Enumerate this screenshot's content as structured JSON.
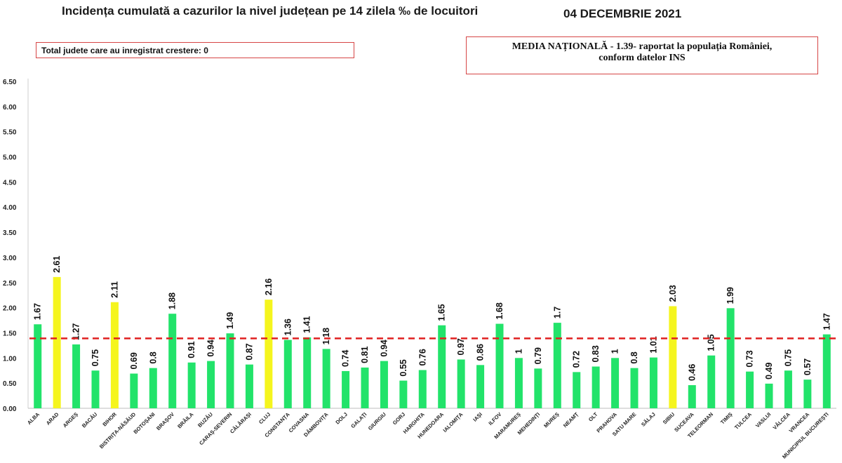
{
  "header": {
    "title": "Incidența cumulată a cazurilor la nivel județean pe 14 zilela ‰ de locuitori",
    "date": "04 DECEMBRIE 2021"
  },
  "info": {
    "growth_note": "Total judete care au inregistrat crestere: 0",
    "national_line1": "MEDIA NAȚIONALĂ  - 1.39-  raportat la populația României,",
    "national_line2": "conform datelor INS"
  },
  "colors": {
    "normal": "#22e36a",
    "highlight": "#f5f51e",
    "average_line": "#e02020",
    "box_border": "#d64545"
  },
  "chart_data": {
    "type": "bar",
    "title": "Incidența cumulată a cazurilor la nivel județean pe 14 zilela ‰ de locuitori",
    "xlabel": "",
    "ylabel": "",
    "ylim": [
      0,
      6.5
    ],
    "yticks": [
      "0.00",
      "0.50",
      "1.00",
      "1.50",
      "2.00",
      "2.50",
      "3.00",
      "3.50",
      "4.00",
      "4.50",
      "5.00",
      "5.50",
      "6.00",
      "6.50"
    ],
    "average": 1.39,
    "grid": false,
    "categories": [
      "ALBA",
      "ARAD",
      "ARGEȘ",
      "BACĂU",
      "BIHOR",
      "BISTRIȚA-NĂSĂUD",
      "BOTOȘANI",
      "BRAȘOV",
      "BRĂILA",
      "BUZĂU",
      "CARAȘ-SEVERIN",
      "CĂLĂRAȘI",
      "CLUJ",
      "CONSTANȚA",
      "COVASNA",
      "DÂMBOVIȚA",
      "DOLJ",
      "GALAȚI",
      "GIURGIU",
      "GORJ",
      "HARGHITA",
      "HUNEDOARA",
      "IALOMIȚA",
      "IAȘI",
      "ILFOV",
      "MARAMUREȘ",
      "MEHEDINȚI",
      "MUREȘ",
      "NEAMȚ",
      "OLT",
      "PRAHOVA",
      "SATU MARE",
      "SĂLAJ",
      "SIBIU",
      "SUCEAVA",
      "TELEORMAN",
      "TIMIȘ",
      "TULCEA",
      "VASLUI",
      "VÂLCEA",
      "VRANCEA",
      "MUNICIPIUL BUCUREȘTI"
    ],
    "values": [
      1.67,
      2.61,
      1.27,
      0.75,
      2.11,
      0.69,
      0.8,
      1.88,
      0.91,
      0.94,
      1.49,
      0.87,
      2.16,
      1.36,
      1.41,
      1.18,
      0.74,
      0.81,
      0.94,
      0.55,
      0.76,
      1.65,
      0.97,
      0.86,
      1.68,
      1,
      0.79,
      1.7,
      0.72,
      0.83,
      1,
      0.8,
      1.01,
      2.03,
      0.46,
      1.05,
      1.99,
      0.73,
      0.49,
      0.75,
      0.57,
      1.47
    ],
    "value_labels": [
      "1.67",
      "2.61",
      "1.27",
      "0.75",
      "2.11",
      "0.69",
      "0.8",
      "1.88",
      "0.91",
      "0.94",
      "1.49",
      "0.87",
      "2.16",
      "1.36",
      "1.41",
      "1.18",
      "0.74",
      "0.81",
      "0.94",
      "0.55",
      "0.76",
      "1.65",
      "0.97",
      "0.86",
      "1.68",
      "1",
      "0.79",
      "1.7",
      "0.72",
      "0.83",
      "1",
      "0.8",
      "1.01",
      "2.03",
      "0.46",
      "1.05",
      "1.99",
      "0.73",
      "0.49",
      "0.75",
      "0.57",
      "1.47"
    ],
    "highlighted": [
      "ARAD",
      "BIHOR",
      "CLUJ",
      "SIBIU"
    ]
  }
}
